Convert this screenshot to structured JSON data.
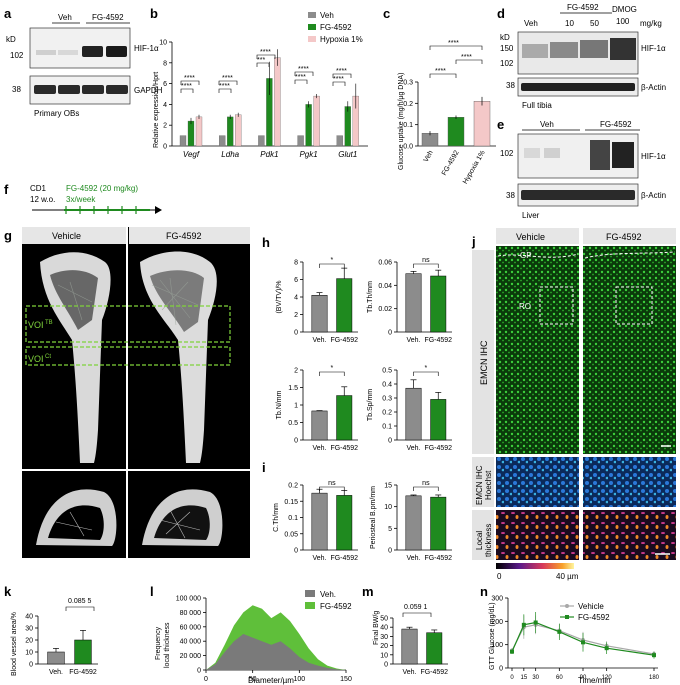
{
  "colors": {
    "veh": "#8c8c8c",
    "fg": "#1f8a1f",
    "hyp": "#f4c8c8",
    "fg_light": "#5fbf3a",
    "emcn": "#2fbf2f",
    "hoechst": "#1e63c8"
  },
  "panels": {
    "a": "a",
    "b": "b",
    "c": "c",
    "d": "d",
    "e": "e",
    "f": "f",
    "g": "g",
    "h": "h",
    "i": "i",
    "j": "j",
    "k": "k",
    "l": "l",
    "m": "m",
    "n": "n"
  },
  "panel_a": {
    "kd": "kD",
    "veh": "Veh",
    "fg": "FG-4592",
    "m102": "102",
    "m38": "38",
    "hif": "HIF-1α",
    "gapdh": "GAPDH",
    "caption": "Primary OBs"
  },
  "panel_b": {
    "ylabel": "Relative expression/Hprt",
    "legend": [
      "Veh",
      "FG-4592",
      "Hypoxia 1%"
    ],
    "sig": "****",
    "sig3": "***"
  },
  "panel_c": {
    "ylabel": "Glucose uptake (mg/h/µg DNA)",
    "sig": "****"
  },
  "panel_d": {
    "kd": "kD",
    "fg": "FG-4592",
    "dmog": "DMOG",
    "mgkg": "mg/kg",
    "lanes": [
      "Veh",
      "10",
      "50",
      "100"
    ],
    "m150": "150",
    "m102": "102",
    "m38": "38",
    "hif": "HIF-1α",
    "actin": "β-Actin",
    "caption": "Full tibia"
  },
  "panel_e": {
    "veh": "Veh",
    "fg": "FG-4592",
    "m102": "102",
    "m38": "38",
    "hif": "HIF-1α",
    "actin": "β-Actin",
    "caption": "Liver"
  },
  "panel_f": {
    "mouse": "CD1",
    "age": "12 w.o.",
    "treatment": "FG-4592 (20 mg/kg)",
    "freq": "3x/week"
  },
  "panel_g": {
    "veh": "Vehicle",
    "fg": "FG-4592",
    "voi_tb": "VOI",
    "voi_tb_sup": "TB",
    "voi_ct": "VOI",
    "voi_ct_sup": "Ct"
  },
  "panel_j": {
    "veh": "Vehicle",
    "fg": "FG-4592",
    "gp": "GP",
    "ro": "RO",
    "row1": "EMCN IHC",
    "row2a": "EMCN IHC",
    "row2b": "Hoechst",
    "row3a": "Local",
    "row3b": "thickness",
    "scale_min": "0",
    "scale_max": "40 µm"
  },
  "panel_k": {
    "ylabel": "Blood vessel area/%",
    "pval": "0.085 5"
  },
  "panel_l": {
    "ylabel_a": "Frequency",
    "ylabel_b": "local thickness",
    "xlabel": "Diameter/µm",
    "legend": [
      "Veh.",
      "FG-4592"
    ]
  },
  "panel_m": {
    "ylabel": "Final BW/g",
    "pval": "0.059 1"
  },
  "panel_n": {
    "ylabel": "GTT Glucose (mg/dL)",
    "xlabel": "Time/min",
    "legend": [
      "Vehicle",
      "FG-4592"
    ]
  },
  "groups": {
    "veh": "Veh.",
    "fg": "FG-4592"
  },
  "sig": {
    "ns": "ns",
    "star": "*"
  },
  "chart_data": [
    {
      "id": "b",
      "type": "bar",
      "categories": [
        "Vegf",
        "Ldha",
        "Pdk1",
        "Pgk1",
        "Glut1"
      ],
      "ylim": [
        0,
        10
      ],
      "yticks": [
        0,
        2,
        4,
        6,
        8,
        10
      ],
      "series": [
        {
          "name": "Veh",
          "values": [
            1,
            1,
            1,
            1,
            1
          ],
          "err": [
            0,
            0,
            0,
            0,
            0
          ]
        },
        {
          "name": "FG-4592",
          "values": [
            2.4,
            2.8,
            6.5,
            4.0,
            3.8
          ],
          "err": [
            0.3,
            0.2,
            1.6,
            0.3,
            0.5
          ]
        },
        {
          "name": "Hypoxia 1%",
          "values": [
            2.8,
            3.0,
            8.5,
            4.8,
            4.8
          ],
          "err": [
            0.2,
            0.2,
            0.8,
            0.2,
            1.2
          ]
        }
      ]
    },
    {
      "id": "c",
      "type": "bar",
      "categories": [
        "Veh",
        "FG-4592",
        "Hypoxia 1%"
      ],
      "ylim": [
        0,
        0.3
      ],
      "yticks": [
        0,
        0.1,
        0.2,
        0.3
      ],
      "values": [
        0.06,
        0.135,
        0.21
      ],
      "err": [
        0.01,
        0.008,
        0.02
      ]
    },
    {
      "id": "h1",
      "type": "bar",
      "ylabel": "(BV/TV)/%",
      "categories": [
        "Veh.",
        "FG-4592"
      ],
      "values": [
        4.2,
        6.1
      ],
      "err": [
        0.3,
        1.2
      ],
      "ylim": [
        0,
        8
      ],
      "yticks": [
        0,
        2,
        4,
        6,
        8
      ],
      "sig": "*"
    },
    {
      "id": "h2",
      "type": "bar",
      "ylabel": "Tb.Th/mm",
      "categories": [
        "Veh.",
        "FG-4592"
      ],
      "values": [
        0.05,
        0.048
      ],
      "err": [
        0.002,
        0.005
      ],
      "ylim": [
        0,
        0.06
      ],
      "yticks": [
        0,
        0.02,
        0.04,
        0.06
      ],
      "sig": "ns"
    },
    {
      "id": "h3",
      "type": "bar",
      "ylabel": "Tb.N/mm",
      "categories": [
        "Veh.",
        "FG-4592"
      ],
      "values": [
        0.83,
        1.27
      ],
      "err": [
        0.01,
        0.25
      ],
      "ylim": [
        0,
        2.0
      ],
      "yticks": [
        0,
        0.5,
        1.0,
        1.5,
        2.0
      ],
      "sig": "*"
    },
    {
      "id": "h4",
      "type": "bar",
      "ylabel": "Tb.Sp/mm",
      "categories": [
        "Veh.",
        "FG-4592"
      ],
      "values": [
        0.37,
        0.29
      ],
      "err": [
        0.06,
        0.05
      ],
      "ylim": [
        0,
        0.5
      ],
      "yticks": [
        0,
        0.1,
        0.2,
        0.3,
        0.4,
        0.5
      ],
      "sig": "*"
    },
    {
      "id": "i1",
      "type": "bar",
      "ylabel": "C.Th/mm",
      "categories": [
        "Veh.",
        "FG-4592"
      ],
      "values": [
        0.175,
        0.168
      ],
      "err": [
        0.012,
        0.015
      ],
      "ylim": [
        0,
        0.2
      ],
      "yticks": [
        0,
        0.05,
        0.1,
        0.15,
        0.2
      ],
      "sig": "ns"
    },
    {
      "id": "i2",
      "type": "bar",
      "ylabel": "Periosteal B.pm/mm",
      "categories": [
        "Veh.",
        "FG-4592"
      ],
      "values": [
        12.5,
        12.2
      ],
      "err": [
        0.2,
        0.5
      ],
      "ylim": [
        0,
        15
      ],
      "yticks": [
        0,
        5,
        10,
        15
      ],
      "sig": "ns"
    },
    {
      "id": "k",
      "type": "bar",
      "ylabel": "Blood vessel area/%",
      "categories": [
        "Veh.",
        "FG-4592"
      ],
      "values": [
        10,
        20
      ],
      "err": [
        3,
        8
      ],
      "ylim": [
        0,
        40
      ],
      "yticks": [
        0,
        10,
        20,
        30,
        40
      ],
      "pval": "0.085 5"
    },
    {
      "id": "l",
      "type": "area",
      "xlabel": "Diameter/µm",
      "ylabel": "Frequency local thickness",
      "x": [
        0,
        10,
        20,
        30,
        40,
        50,
        60,
        70,
        80,
        90,
        100,
        110,
        120,
        130,
        140,
        150
      ],
      "xticks": [
        0,
        50,
        100,
        150
      ],
      "ylim": [
        0,
        100000
      ],
      "yticks": [
        0,
        20000,
        40000,
        60000,
        80000,
        100000
      ],
      "series": [
        {
          "name": "Veh.",
          "values": [
            0,
            8000,
            25000,
            40000,
            50000,
            45000,
            40000,
            35000,
            40000,
            30000,
            18000,
            10000,
            6000,
            3000,
            1000,
            0
          ]
        },
        {
          "name": "FG-4592",
          "values": [
            0,
            10000,
            35000,
            62000,
            80000,
            90000,
            85000,
            72000,
            80000,
            68000,
            50000,
            30000,
            15000,
            6000,
            2000,
            0
          ]
        }
      ]
    },
    {
      "id": "m",
      "type": "bar",
      "ylabel": "Final BW/g",
      "categories": [
        "Veh.",
        "FG-4592"
      ],
      "values": [
        38,
        34
      ],
      "err": [
        2,
        3
      ],
      "ylim": [
        0,
        50
      ],
      "yticks": [
        0,
        10,
        20,
        30,
        40,
        50
      ],
      "pval": "0.059 1"
    },
    {
      "id": "n",
      "type": "line",
      "xlabel": "Time/min",
      "ylabel": "GTT Glucose (mg/dL)",
      "x": [
        0,
        15,
        30,
        60,
        90,
        120,
        180
      ],
      "ylim": [
        0,
        300
      ],
      "yticks": [
        0,
        100,
        200,
        300
      ],
      "xticks": [
        0,
        15,
        30,
        60,
        90,
        120,
        180
      ],
      "series": [
        {
          "name": "Vehicle",
          "values": [
            75,
            175,
            185,
            160,
            120,
            95,
            60
          ],
          "err": [
            10,
            50,
            40,
            30,
            35,
            20,
            12
          ]
        },
        {
          "name": "FG-4592",
          "values": [
            70,
            185,
            195,
            155,
            110,
            85,
            55
          ],
          "err": [
            10,
            45,
            45,
            35,
            40,
            25,
            15
          ]
        }
      ]
    }
  ]
}
